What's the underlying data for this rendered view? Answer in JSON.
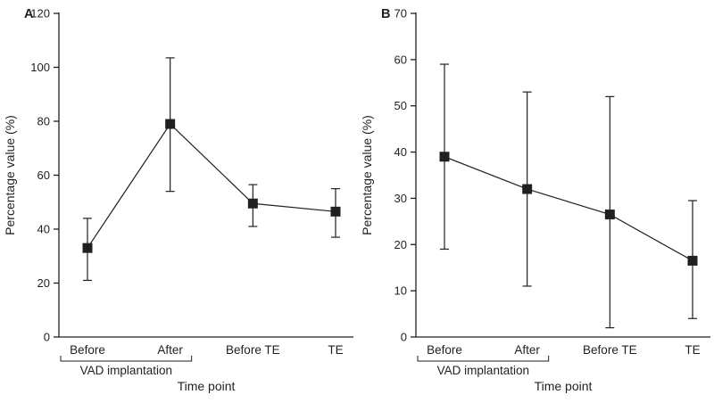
{
  "figure": {
    "background": "#ffffff",
    "ink_color": "#231f20"
  },
  "chart_data": [
    {
      "type": "line",
      "panel_label": "A",
      "categories": [
        "Before",
        "After",
        "Before TE",
        "TE"
      ],
      "values": [
        33,
        79,
        49.5,
        46.5
      ],
      "error_low": [
        21,
        54,
        41,
        37
      ],
      "error_high": [
        44,
        103.5,
        56.5,
        55
      ],
      "title": "",
      "xlabel": "Time point",
      "ylabel": "Percentage value (%)",
      "ylim": [
        0,
        120
      ],
      "ytick_step": 20,
      "bracket_label": "VAD implantation",
      "bracket_span": [
        "Before",
        "After"
      ],
      "marker": "square",
      "grid": false,
      "legend": "none"
    },
    {
      "type": "line",
      "panel_label": "B",
      "categories": [
        "Before",
        "After",
        "Before TE",
        "TE"
      ],
      "values": [
        39,
        32,
        26.5,
        16.5
      ],
      "error_low": [
        19,
        11,
        2,
        4
      ],
      "error_high": [
        59,
        53,
        52,
        29.5
      ],
      "title": "",
      "xlabel": "Time point",
      "ylabel": "Percentage value (%)",
      "ylim": [
        0,
        70
      ],
      "ytick_step": 10,
      "bracket_label": "VAD implantation",
      "bracket_span": [
        "Before",
        "After"
      ],
      "marker": "square",
      "grid": false,
      "legend": "none"
    }
  ]
}
